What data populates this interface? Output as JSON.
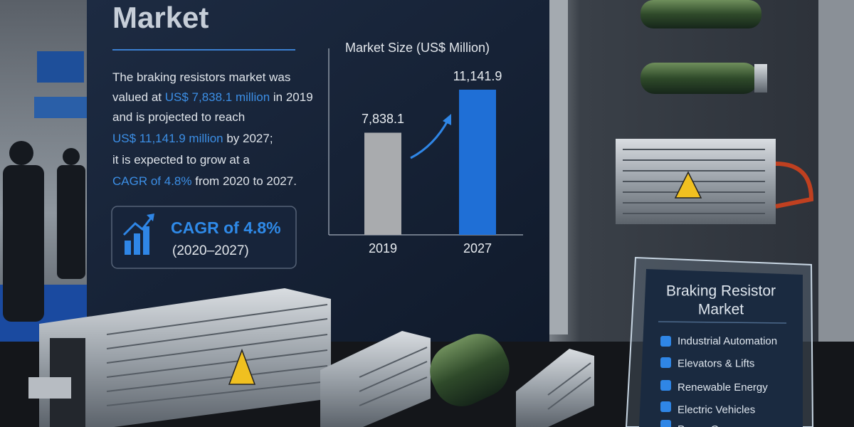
{
  "poster": {
    "title": "Market",
    "paragraph": [
      [
        {
          "text": "The braking resistors market was",
          "highlight": false
        }
      ],
      [
        {
          "text": "valued at ",
          "highlight": false
        },
        {
          "text": "US$ 7,838.1 million",
          "highlight": true
        },
        {
          "text": " in 2019",
          "highlight": false
        }
      ],
      [
        {
          "text": "and is projected to reach",
          "highlight": false
        }
      ],
      [
        {
          "text": "US$ 11,141.9 million",
          "highlight": true
        },
        {
          "text": " by 2027;",
          "highlight": false
        }
      ],
      [
        {
          "text": "it is expected to grow at a",
          "highlight": false
        }
      ],
      [
        {
          "text": "CAGR of 4.8%",
          "highlight": true
        },
        {
          "text": " from 2020 to 2027.",
          "highlight": false
        }
      ]
    ],
    "cagr_box": {
      "headline": "CAGR of 4.8%",
      "period": "(2020–2027)"
    },
    "chart": {
      "type": "bar",
      "title": "Market Size (US$ Million)",
      "categories": [
        "2019",
        "2027"
      ],
      "values": [
        7838.1,
        11141.9
      ],
      "value_labels": [
        "7,838.1",
        "11,141.9"
      ],
      "colors": [
        "#a9abae",
        "#1f6fd6"
      ]
    }
  },
  "sign": {
    "title_lines": [
      "Braking Resistor",
      "Market"
    ],
    "items": [
      "Industrial Automation",
      "Elevators & Lifts",
      "Renewable Energy",
      "Electric Vehicles",
      "Power Gen"
    ]
  }
}
